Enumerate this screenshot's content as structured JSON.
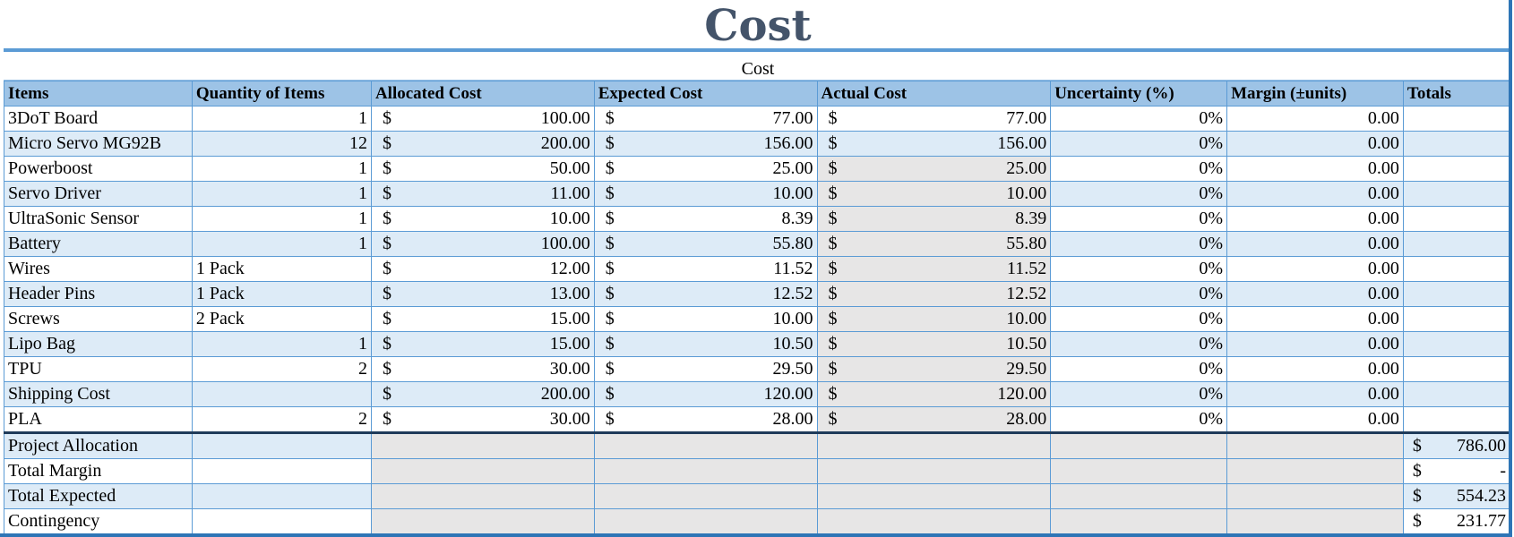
{
  "title": "Cost",
  "subtitle": "Cost",
  "headers": [
    "Items",
    "Quantity of Items",
    "Allocated Cost",
    "Expected Cost",
    "Actual Cost",
    "Uncertainty (%)",
    "Margin (±units)",
    "Totals"
  ],
  "currency_symbol": "$",
  "rows": [
    {
      "item": "3DoT Board",
      "qty": "1",
      "allocated": "100.00",
      "expected": "77.00",
      "actual": "77.00",
      "uncertainty": "0%",
      "margin": "0.00"
    },
    {
      "item": "Micro Servo MG92B",
      "qty": "12",
      "allocated": "200.00",
      "expected": "156.00",
      "actual": "156.00",
      "uncertainty": "0%",
      "margin": "0.00"
    },
    {
      "item": "Powerboost",
      "qty": "1",
      "allocated": "50.00",
      "expected": "25.00",
      "actual": "25.00",
      "uncertainty": "0%",
      "margin": "0.00"
    },
    {
      "item": "Servo Driver",
      "qty": "1",
      "allocated": "11.00",
      "expected": "10.00",
      "actual": "10.00",
      "uncertainty": "0%",
      "margin": "0.00"
    },
    {
      "item": "UltraSonic Sensor",
      "qty": "1",
      "allocated": "10.00",
      "expected": "8.39",
      "actual": "8.39",
      "uncertainty": "0%",
      "margin": "0.00"
    },
    {
      "item": "Battery",
      "qty": "1",
      "allocated": "100.00",
      "expected": "55.80",
      "actual": "55.80",
      "uncertainty": "0%",
      "margin": "0.00"
    },
    {
      "item": "Wires",
      "qty": "1 Pack",
      "allocated": "12.00",
      "expected": "11.52",
      "actual": "11.52",
      "uncertainty": "0%",
      "margin": "0.00"
    },
    {
      "item": "Header Pins",
      "qty": "1 Pack",
      "allocated": "13.00",
      "expected": "12.52",
      "actual": "12.52",
      "uncertainty": "0%",
      "margin": "0.00"
    },
    {
      "item": "Screws",
      "qty": "2 Pack",
      "allocated": "15.00",
      "expected": "10.00",
      "actual": "10.00",
      "uncertainty": "0%",
      "margin": "0.00"
    },
    {
      "item": "Lipo Bag",
      "qty": "1",
      "allocated": "15.00",
      "expected": "10.50",
      "actual": "10.50",
      "uncertainty": "0%",
      "margin": "0.00"
    },
    {
      "item": "TPU",
      "qty": "2",
      "allocated": "30.00",
      "expected": "29.50",
      "actual": "29.50",
      "uncertainty": "0%",
      "margin": "0.00"
    },
    {
      "item": "Shipping Cost",
      "qty": "",
      "allocated": "200.00",
      "expected": "120.00",
      "actual": "120.00",
      "uncertainty": "0%",
      "margin": "0.00"
    },
    {
      "item": "PLA",
      "qty": "2",
      "allocated": "30.00",
      "expected": "28.00",
      "actual": "28.00",
      "uncertainty": "0%",
      "margin": "0.00"
    }
  ],
  "summary": [
    {
      "label": "Project Allocation",
      "total": "786.00"
    },
    {
      "label": "Total Margin",
      "total": "-"
    },
    {
      "label": "Total Expected",
      "total": "554.23"
    },
    {
      "label": "Contingency",
      "total": "231.77"
    }
  ]
}
